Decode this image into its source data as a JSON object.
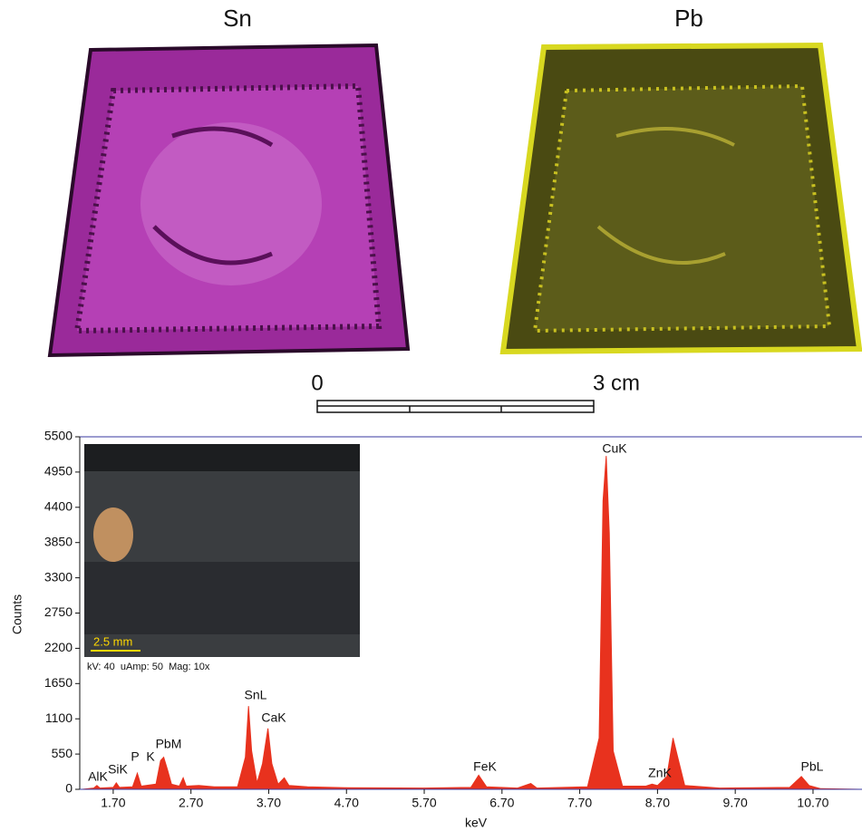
{
  "maps": {
    "left_label": "Sn",
    "right_label": "Pb"
  },
  "scale_bar": {
    "start_label": "0",
    "end_label": "3 cm"
  },
  "inset": {
    "scale_label": "2.5 mm",
    "info": "kV: 40  uAmp: 50  Mag: 10x"
  },
  "chart_data": {
    "type": "area",
    "x_label": "keV",
    "y_label": "Counts",
    "color": "#e8321e",
    "x": [
      1.3,
      1.45,
      1.49,
      1.53,
      1.7,
      1.74,
      1.78,
      1.95,
      2.01,
      2.06,
      2.25,
      2.31,
      2.35,
      2.4,
      2.45,
      2.55,
      2.6,
      2.64,
      2.8,
      3.0,
      3.3,
      3.4,
      3.44,
      3.48,
      3.55,
      3.62,
      3.69,
      3.74,
      3.82,
      3.9,
      3.96,
      4.2,
      4.7,
      5.7,
      6.3,
      6.4,
      6.5,
      6.9,
      7.07,
      7.15,
      7.8,
      7.95,
      8.0,
      8.04,
      8.08,
      8.13,
      8.25,
      8.55,
      8.63,
      8.7,
      8.82,
      8.9,
      8.96,
      9.05,
      9.5,
      10.4,
      10.55,
      10.65,
      10.8,
      11.3
    ],
    "values": [
      0,
      20,
      60,
      20,
      30,
      100,
      30,
      40,
      250,
      50,
      80,
      450,
      500,
      300,
      80,
      50,
      180,
      50,
      60,
      40,
      40,
      500,
      1300,
      600,
      100,
      400,
      950,
      400,
      80,
      180,
      60,
      40,
      25,
      20,
      30,
      220,
      40,
      20,
      90,
      20,
      40,
      800,
      4500,
      5200,
      4000,
      600,
      50,
      50,
      80,
      60,
      200,
      800,
      500,
      60,
      20,
      30,
      200,
      60,
      10,
      0
    ],
    "peak_labels": [
      "AlK",
      "SiK",
      "P",
      "K",
      "PbM",
      "SnL",
      "CaK",
      "FeK",
      "CuK",
      "ZnK",
      "PbL"
    ],
    "xlim": [
      1.27,
      11.33
    ],
    "ylim": [
      0,
      5500
    ],
    "xticks": [
      {
        "value": 1.7,
        "label": "1.70"
      },
      {
        "value": 2.7,
        "label": "2.70"
      },
      {
        "value": 3.7,
        "label": "3.70"
      },
      {
        "value": 4.7,
        "label": "4.70"
      },
      {
        "value": 5.7,
        "label": "5.70"
      },
      {
        "value": 6.7,
        "label": "6.70"
      },
      {
        "value": 7.7,
        "label": "7.70"
      },
      {
        "value": 8.7,
        "label": "8.70"
      },
      {
        "value": 9.7,
        "label": "9.70"
      },
      {
        "value": 10.7,
        "label": "10.70"
      }
    ],
    "yticks": [
      0,
      550,
      1100,
      1650,
      2200,
      2750,
      3300,
      3850,
      4400,
      4950,
      5500
    ]
  }
}
